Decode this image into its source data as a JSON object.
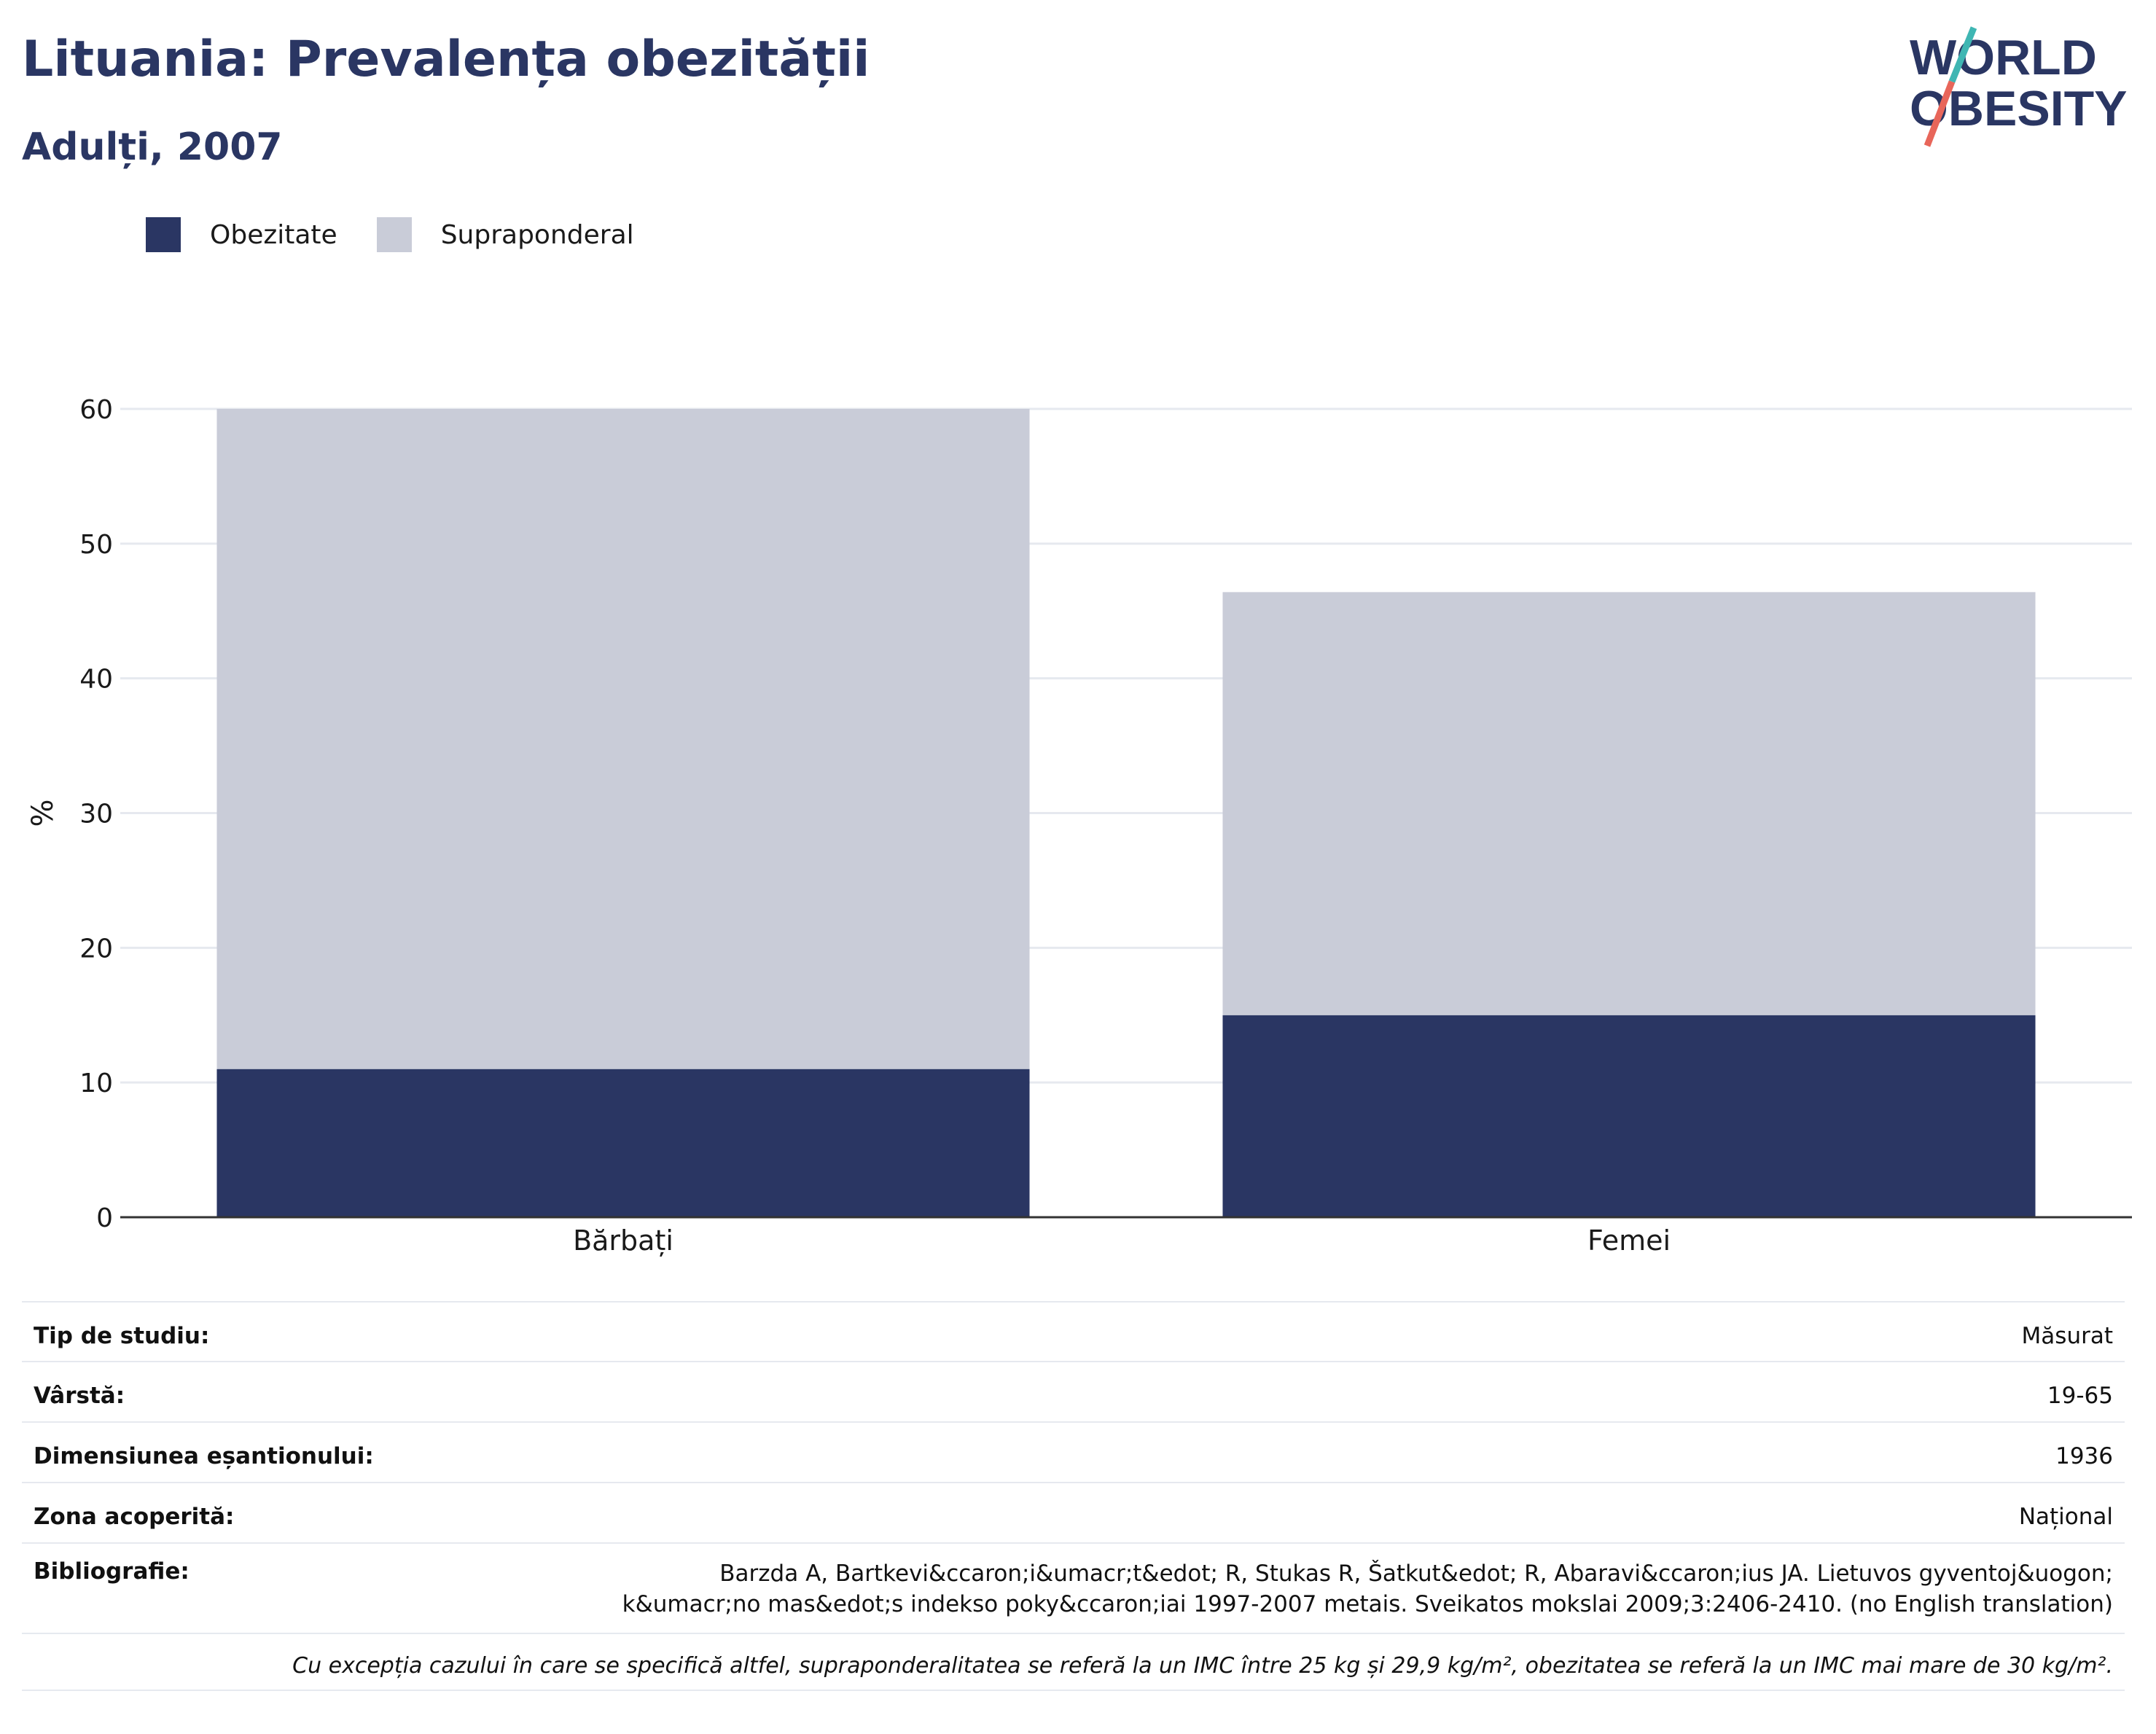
{
  "title": "Lituania: Prevalența obezității",
  "subtitle": "Adulți, 2007",
  "logo": {
    "line1": "WORLD",
    "line2": "OBESITY"
  },
  "legend": [
    {
      "label": "Obezitate",
      "color": "#2a3663"
    },
    {
      "label": "Supraponderal",
      "color": "#c9ccd8"
    }
  ],
  "chart_data": {
    "type": "bar",
    "stacked": true,
    "categories": [
      "Bărbați",
      "Femei"
    ],
    "series": [
      {
        "name": "Obezitate",
        "values": [
          11,
          15
        ],
        "color": "#2a3663"
      },
      {
        "name": "Supraponderal",
        "values": [
          49,
          31.4
        ],
        "color": "#c9ccd8"
      }
    ],
    "ylabel": "%",
    "ylim": [
      0,
      60
    ],
    "yticks": [
      0,
      10,
      20,
      30,
      40,
      50,
      60
    ],
    "grid": true,
    "legend_position": "top-left"
  },
  "info": {
    "study_type_label": "Tip de studiu:",
    "study_type_value": "Măsurat",
    "age_label": "Vârstă:",
    "age_value": "19-65",
    "sample_label": "Dimensiunea eșantionului:",
    "sample_value": "1936",
    "area_label": "Zona acoperită:",
    "area_value": "Național",
    "biblio_label": "Bibliografie:",
    "biblio_value": "Barzda A, Bartkevi&ccaron;i&umacr;t&edot; R, Stukas R, Šatkut&edot; R, Abaravi&ccaron;ius JA. Lietuvos gyventoj&uogon; k&umacr;no mas&edot;s indekso poky&ccaron;iai 1997-2007 metais. Sveikatos mokslai 2009;3:2406-2410. (no English translation)",
    "note": "Cu excepția cazului în care se specifică altfel, supraponderalitatea se referă la un IMC între 25 kg și 29,9 kg/m², obezitatea se referă la un IMC mai mare de 30 kg/m²."
  }
}
